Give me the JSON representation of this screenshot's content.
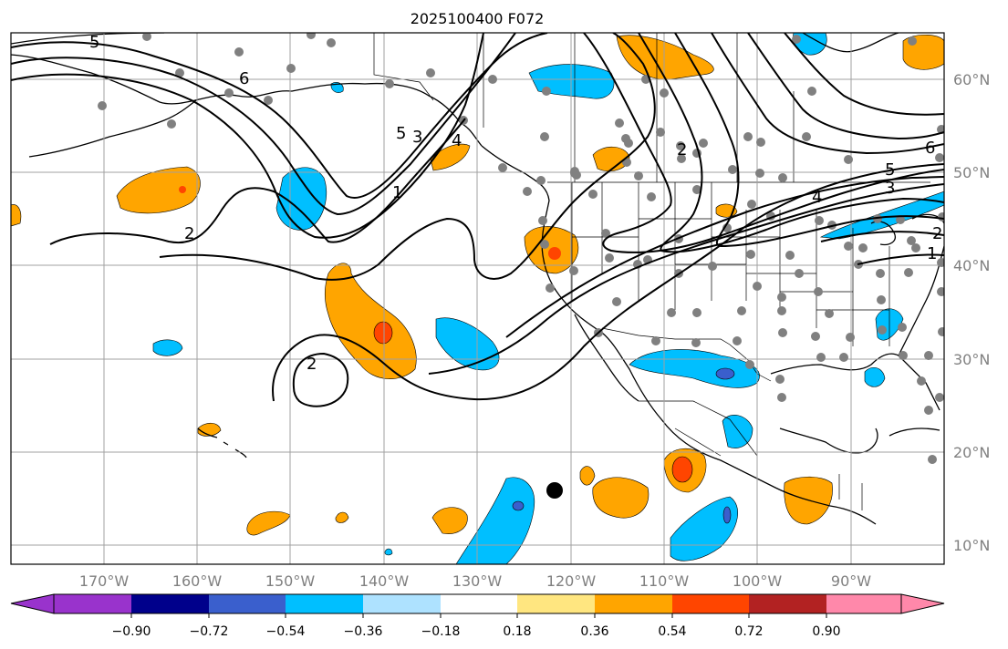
{
  "title": "2025100400 F072",
  "chart_data": {
    "type": "map-contour",
    "title": "2025100400 F072",
    "longitude_ticks": [
      "170°W",
      "160°W",
      "150°W",
      "140°W",
      "130°W",
      "120°W",
      "110°W",
      "100°W",
      "90°W"
    ],
    "latitude_ticks": [
      "60°N",
      "50°N",
      "40°N",
      "30°N",
      "20°N",
      "10°N"
    ],
    "colorbar": {
      "ticks": [
        "−0.90",
        "−0.72",
        "−0.54",
        "−0.36",
        "−0.18",
        "0.18",
        "0.36",
        "0.54",
        "0.72",
        "0.90"
      ],
      "colors": [
        "#9933cc",
        "#00008b",
        "#3a5fcd",
        "#00bfff",
        "#aee2ff",
        "#ffffff",
        "#ffe680",
        "#ffa500",
        "#ff4500",
        "#b22222",
        "#ff88aa"
      ],
      "extend": "both"
    },
    "contour_labels": [
      "5",
      "6",
      "5",
      "3",
      "4",
      "1",
      "2",
      "2",
      "2",
      "5",
      "6",
      "3",
      "4",
      "1",
      "2"
    ],
    "marker": "filled black circle near 16°N, 121°W"
  },
  "colors": {
    "axis": "#000000",
    "grid": "#a0a0a0",
    "ticklabel": "#808080",
    "station": "#808080"
  }
}
